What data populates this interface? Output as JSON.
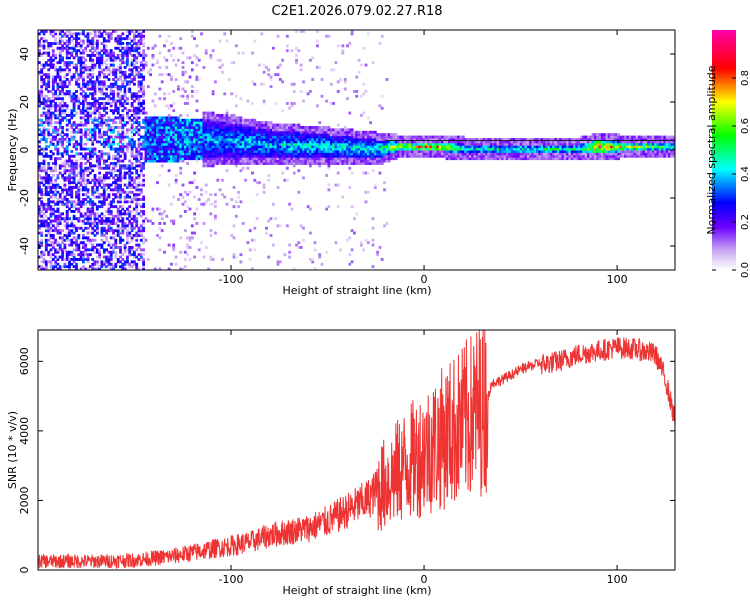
{
  "title": "C2E1.2026.079.02.27.R18",
  "chart_data": [
    {
      "type": "heatmap",
      "xlabel": "Height of straight line (km)",
      "ylabel": "Frequency (Hz)",
      "xlim": [
        -200,
        130
      ],
      "ylim": [
        -50,
        50
      ],
      "xticks": [
        -100,
        0,
        100
      ],
      "yticks": [
        -40,
        -20,
        0,
        20,
        40
      ],
      "colorbar_label": "Normalized spectral amplitude",
      "colorbar_range": [
        0.0,
        1.0
      ],
      "colorbar_ticks": [
        0.0,
        0.2,
        0.4,
        0.6,
        0.8
      ],
      "colormap": [
        "#ffffff",
        "#8a2be2",
        "#0000ff",
        "#00ffff",
        "#00ff00",
        "#ffff00",
        "#ff0000",
        "#ff00aa"
      ],
      "band_profile": [
        {
          "x": -200,
          "center": 5,
          "halfwidth": 50,
          "amp": 0.2
        },
        {
          "x": -150,
          "center": 5,
          "halfwidth": 50,
          "amp": 0.22
        },
        {
          "x": -145,
          "center": 4,
          "halfwidth": 10,
          "amp": 0.35
        },
        {
          "x": -110,
          "center": 4,
          "halfwidth": 8,
          "amp": 0.4
        },
        {
          "x": -80,
          "center": 2,
          "halfwidth": 6,
          "amp": 0.42
        },
        {
          "x": -50,
          "center": 1,
          "halfwidth": 5,
          "amp": 0.45
        },
        {
          "x": -25,
          "center": 0,
          "halfwidth": 4,
          "amp": 0.45
        },
        {
          "x": -15,
          "center": 1,
          "halfwidth": 2,
          "amp": 0.7
        },
        {
          "x": 10,
          "center": 1,
          "halfwidth": 2,
          "amp": 0.75
        },
        {
          "x": 20,
          "center": 0,
          "halfwidth": 2,
          "amp": 0.45
        },
        {
          "x": 80,
          "center": 0,
          "halfwidth": 2,
          "amp": 0.5
        },
        {
          "x": 90,
          "center": 1,
          "halfwidth": 2.5,
          "amp": 0.85
        },
        {
          "x": 100,
          "center": 1,
          "halfwidth": 2,
          "amp": 0.7
        },
        {
          "x": 130,
          "center": 1,
          "halfwidth": 2,
          "amp": 0.5
        }
      ]
    },
    {
      "type": "line",
      "xlabel": "Height of straight line (km)",
      "ylabel": "SNR (10 * v/v)",
      "xlim": [
        -200,
        130
      ],
      "ylim": [
        0,
        6900
      ],
      "xticks": [
        -100,
        0,
        100
      ],
      "yticks": [
        0,
        2000,
        4000,
        6000
      ],
      "color": "#ee3333",
      "series": [
        {
          "name": "SNR",
          "x": [
            -200,
            -170,
            -150,
            -130,
            -110,
            -90,
            -80,
            -70,
            -60,
            -50,
            -40,
            -30,
            -20,
            -10,
            0,
            10,
            20,
            30,
            33,
            35,
            40,
            50,
            60,
            70,
            80,
            90,
            100,
            110,
            120,
            125,
            130
          ],
          "values": [
            250,
            250,
            280,
            400,
            600,
            800,
            1000,
            1100,
            1200,
            1400,
            1700,
            2000,
            2500,
            3000,
            3400,
            3800,
            4200,
            4700,
            4900,
            5300,
            5400,
            5700,
            5900,
            6000,
            6200,
            6300,
            6400,
            6350,
            6200,
            5500,
            4300
          ]
        }
      ]
    }
  ]
}
